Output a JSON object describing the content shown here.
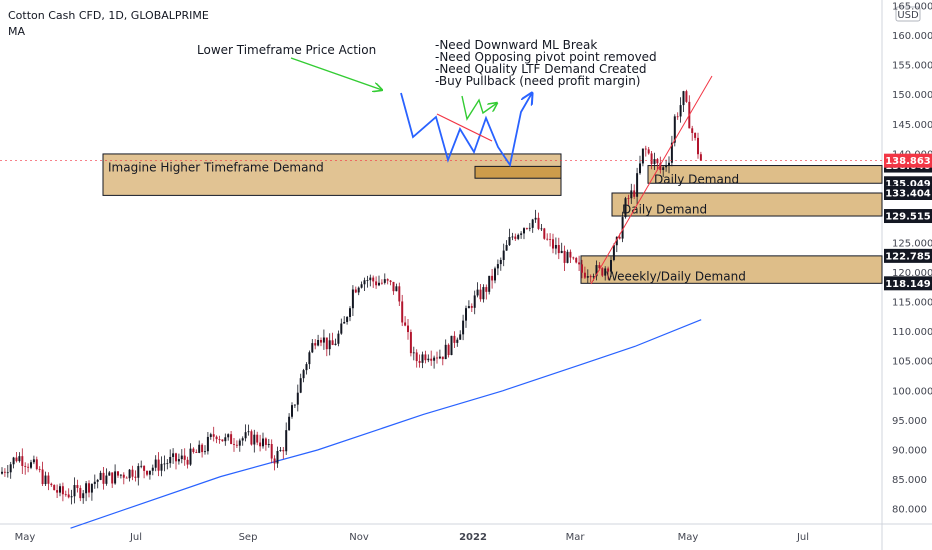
{
  "header": {
    "symbol_line": "Cotton Cash CFD, 1D, GLOBALPRIME",
    "indicator": "MA",
    "currency": "USD"
  },
  "chart_data": {
    "type": "candlestick",
    "title": "Cotton Cash CFD, 1D, GLOBALPRIME",
    "x_ticks": [
      "May",
      "Jul",
      "Sep",
      "Nov",
      "2022",
      "Mar",
      "May",
      "Jul"
    ],
    "y_ticks": [
      "80.000",
      "85.000",
      "90.000",
      "95.000",
      "100.000",
      "105.000",
      "110.000",
      "115.000",
      "120.000",
      "125.000",
      "130.000",
      "135.000",
      "140.000",
      "145.000",
      "150.000",
      "155.000",
      "160.000",
      "165.000"
    ],
    "ylim": [
      77.5,
      166
    ],
    "grid": false,
    "current_price": "138.863",
    "price_levels": [
      {
        "label": "138.040",
        "value": 138.04
      },
      {
        "label": "135.049",
        "value": 135.049
      },
      {
        "label": "133.404",
        "value": 133.404
      },
      {
        "label": "129.515",
        "value": 129.515
      },
      {
        "label": "122.785",
        "value": 122.785
      },
      {
        "label": "118.149",
        "value": 118.149
      }
    ],
    "price_path": [
      [
        0,
        86
      ],
      [
        0.02,
        89
      ],
      [
        0.04,
        87
      ],
      [
        0.055,
        84
      ],
      [
        0.07,
        82.5
      ],
      [
        0.09,
        83
      ],
      [
        0.11,
        85
      ],
      [
        0.13,
        85.5
      ],
      [
        0.15,
        86.5
      ],
      [
        0.17,
        87
      ],
      [
        0.19,
        88
      ],
      [
        0.21,
        88.5
      ],
      [
        0.23,
        90
      ],
      [
        0.245,
        93
      ],
      [
        0.255,
        91.5
      ],
      [
        0.27,
        92
      ],
      [
        0.29,
        92
      ],
      [
        0.3,
        91
      ],
      [
        0.31,
        88.5
      ],
      [
        0.32,
        90
      ],
      [
        0.33,
        96
      ],
      [
        0.345,
        104
      ],
      [
        0.36,
        110
      ],
      [
        0.375,
        107
      ],
      [
        0.39,
        111
      ],
      [
        0.4,
        117
      ],
      [
        0.41,
        119
      ],
      [
        0.425,
        118.5
      ],
      [
        0.44,
        118
      ],
      [
        0.45,
        117
      ],
      [
        0.46,
        110
      ],
      [
        0.47,
        105
      ],
      [
        0.485,
        106.5
      ],
      [
        0.5,
        106
      ],
      [
        0.51,
        107.5
      ],
      [
        0.52,
        110
      ],
      [
        0.535,
        115
      ],
      [
        0.55,
        117
      ],
      [
        0.565,
        121
      ],
      [
        0.58,
        126
      ],
      [
        0.595,
        128
      ],
      [
        0.605,
        129
      ],
      [
        0.615,
        126
      ],
      [
        0.63,
        124
      ],
      [
        0.645,
        122
      ],
      [
        0.66,
        120
      ],
      [
        0.67,
        120.5
      ],
      [
        0.68,
        120
      ],
      [
        0.69,
        121.5
      ],
      [
        0.7,
        125
      ],
      [
        0.71,
        132
      ],
      [
        0.72,
        134
      ],
      [
        0.73,
        141
      ],
      [
        0.74,
        139
      ],
      [
        0.75,
        137
      ],
      [
        0.76,
        140
      ],
      [
        0.765,
        146
      ],
      [
        0.775,
        149.5
      ],
      [
        0.785,
        143.5
      ],
      [
        0.795,
        138.8
      ]
    ],
    "moving_average": [
      [
        0.08,
        76.8
      ],
      [
        0.25,
        85.5
      ],
      [
        0.36,
        90
      ],
      [
        0.48,
        96
      ],
      [
        0.57,
        100
      ],
      [
        0.66,
        104.5
      ],
      [
        0.72,
        107.5
      ],
      [
        0.795,
        112
      ]
    ],
    "demand_zones": [
      {
        "label": "Imagine Higher Timeframe Demand",
        "top": 140.0,
        "bottom": 133.0
      },
      {
        "label": "Daily Demand",
        "top": 138.04,
        "bottom": 135.049
      },
      {
        "label": "Daily Demand",
        "top": 133.404,
        "bottom": 129.515
      },
      {
        "label": "Weeekly/Daily Demand",
        "top": 122.785,
        "bottom": 118.149
      }
    ],
    "annotations": {
      "ltf_label": "Lower Timeframe Price Action",
      "notes": [
        "-Need Downward ML Break",
        "-Need Opposing pivot point removed",
        "-Need Quality LTF Demand Created",
        "-Buy Pullback (need profit margin)"
      ]
    },
    "colors": {
      "candle_up": "#131722",
      "candle_down": "#b2152d",
      "ma_line": "#2962ff",
      "zone_fill": "#c8923a",
      "trend_line": "#f23645",
      "ltf_path": "#2962ff",
      "ltf_arrow": "#33cc33",
      "price_tag_bg": "#f23645"
    }
  }
}
